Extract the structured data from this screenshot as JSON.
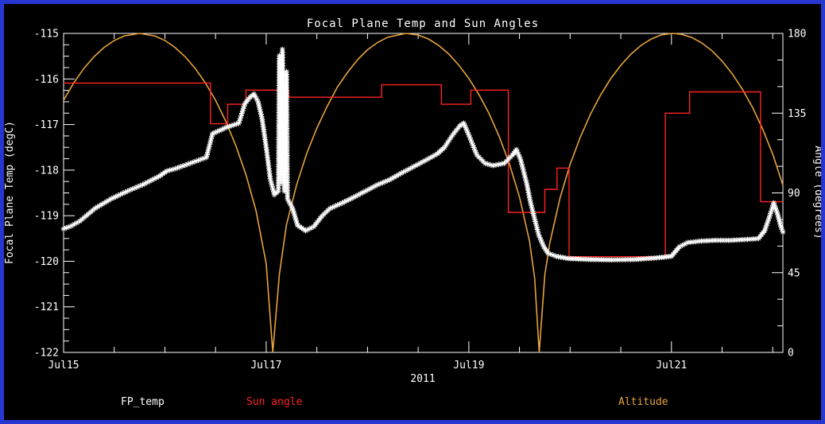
{
  "window": {
    "background": "#000000",
    "border_color": "#2636d0"
  },
  "chart_data": {
    "type": "line",
    "title": "Focal Plane Temp and Sun Angles",
    "x_axis": {
      "label": "2011",
      "range_days": [
        15.0,
        22.1
      ],
      "minor_step": 0.5,
      "ticks": [
        {
          "day": 15,
          "label": "Jul15"
        },
        {
          "day": 17,
          "label": "Jul17"
        },
        {
          "day": 19,
          "label": "Jul19"
        },
        {
          "day": 21,
          "label": "Jul21"
        }
      ]
    },
    "y_left": {
      "label": "Focal Plane Temp (degC)",
      "range": [
        -122,
        -115
      ],
      "minor_step": 0.25,
      "ticks": [
        {
          "v": -115,
          "label": "-115"
        },
        {
          "v": -116,
          "label": "-116"
        },
        {
          "v": -117,
          "label": "-117"
        },
        {
          "v": -118,
          "label": "-118"
        },
        {
          "v": -119,
          "label": "-119"
        },
        {
          "v": -120,
          "label": "-120"
        },
        {
          "v": -121,
          "label": "-121"
        },
        {
          "v": -122,
          "label": "-122"
        }
      ]
    },
    "y_right": {
      "label": "Angle (degrees)",
      "range": [
        0,
        180
      ],
      "minor_step": 15,
      "ticks": [
        {
          "v": 0,
          "label": "0"
        },
        {
          "v": 45,
          "label": "45"
        },
        {
          "v": 90,
          "label": "90"
        },
        {
          "v": 135,
          "label": "135"
        },
        {
          "v": 180,
          "label": "180"
        }
      ]
    },
    "legend": [
      {
        "label": "FP_temp",
        "color": "#ffffff"
      },
      {
        "label": "Sun angle",
        "color": "#ff2222"
      },
      {
        "label": "Altitude",
        "color": "#e8a33d"
      }
    ],
    "series": [
      {
        "name": "Altitude",
        "color": "#e8a33d",
        "style": "line",
        "axis": "right",
        "points": [
          [
            15.0,
            142.3
          ],
          [
            15.1,
            152.0
          ],
          [
            15.2,
            160.2
          ],
          [
            15.3,
            166.8
          ],
          [
            15.4,
            172.1
          ],
          [
            15.5,
            176.0
          ],
          [
            15.6,
            178.6
          ],
          [
            15.75,
            180.0
          ],
          [
            15.9,
            178.6
          ],
          [
            16.0,
            176.0
          ],
          [
            16.1,
            172.1
          ],
          [
            16.2,
            166.8
          ],
          [
            16.3,
            160.2
          ],
          [
            16.4,
            152.0
          ],
          [
            16.5,
            142.3
          ],
          [
            16.6,
            130.6
          ],
          [
            16.7,
            116.7
          ],
          [
            16.8,
            100.4
          ],
          [
            16.9,
            79.8
          ],
          [
            17.0,
            50.2
          ],
          [
            17.065,
            0.0
          ],
          [
            17.13,
            44.0
          ],
          [
            17.2,
            72.0
          ],
          [
            17.3,
            94.6
          ],
          [
            17.4,
            112.2
          ],
          [
            17.5,
            126.6
          ],
          [
            17.6,
            138.6
          ],
          [
            17.7,
            149.5
          ],
          [
            17.8,
            157.8
          ],
          [
            17.9,
            165.0
          ],
          [
            18.0,
            170.8
          ],
          [
            18.1,
            174.9
          ],
          [
            18.2,
            177.9
          ],
          [
            18.38,
            180.0
          ],
          [
            18.5,
            179.1
          ],
          [
            18.6,
            176.9
          ],
          [
            18.7,
            173.3
          ],
          [
            18.8,
            168.5
          ],
          [
            18.9,
            162.2
          ],
          [
            19.0,
            154.6
          ],
          [
            19.1,
            145.5
          ],
          [
            19.2,
            134.7
          ],
          [
            19.3,
            121.8
          ],
          [
            19.4,
            106.6
          ],
          [
            19.5,
            87.7
          ],
          [
            19.6,
            62.6
          ],
          [
            19.65,
            41.9
          ],
          [
            19.695,
            0.0
          ],
          [
            19.75,
            43.8
          ],
          [
            19.8,
            61.8
          ],
          [
            19.9,
            87.1
          ],
          [
            20.0,
            106.1
          ],
          [
            20.1,
            121.4
          ],
          [
            20.2,
            134.3
          ],
          [
            20.3,
            145.2
          ],
          [
            20.4,
            154.4
          ],
          [
            20.5,
            162.0
          ],
          [
            20.6,
            168.3
          ],
          [
            20.7,
            173.2
          ],
          [
            20.8,
            176.8
          ],
          [
            20.9,
            179.2
          ],
          [
            21.01,
            180.0
          ],
          [
            21.1,
            179.5
          ],
          [
            21.2,
            177.7
          ],
          [
            21.3,
            174.6
          ],
          [
            21.4,
            170.2
          ],
          [
            21.5,
            164.4
          ],
          [
            21.6,
            157.2
          ],
          [
            21.7,
            148.6
          ],
          [
            21.8,
            138.3
          ],
          [
            21.9,
            126.1
          ],
          [
            22.0,
            111.8
          ],
          [
            22.1,
            94.4
          ]
        ]
      },
      {
        "name": "Sun angle",
        "color": "#ff2222",
        "style": "step",
        "axis": "right",
        "segments": [
          [
            15.0,
            16.45,
            152
          ],
          [
            16.45,
            16.62,
            129
          ],
          [
            16.62,
            16.8,
            140
          ],
          [
            16.8,
            17.22,
            148
          ],
          [
            17.22,
            18.14,
            144
          ],
          [
            18.14,
            18.73,
            151
          ],
          [
            18.73,
            19.02,
            140
          ],
          [
            19.02,
            19.39,
            148
          ],
          [
            19.39,
            19.75,
            79
          ],
          [
            19.75,
            19.87,
            92
          ],
          [
            19.87,
            19.99,
            104
          ],
          [
            19.99,
            20.94,
            54
          ],
          [
            20.94,
            21.18,
            135
          ],
          [
            21.18,
            21.88,
            147
          ],
          [
            21.88,
            22.1,
            85
          ]
        ]
      },
      {
        "name": "FP_temp",
        "color": "#ffffff",
        "style": "markers",
        "axis": "left",
        "points": [
          [
            15.0,
            -119.29
          ],
          [
            15.08,
            -119.22
          ],
          [
            15.16,
            -119.12
          ],
          [
            15.31,
            -118.84
          ],
          [
            15.47,
            -118.63
          ],
          [
            15.63,
            -118.46
          ],
          [
            15.78,
            -118.32
          ],
          [
            15.94,
            -118.14
          ],
          [
            16.02,
            -118.02
          ],
          [
            16.1,
            -117.97
          ],
          [
            16.25,
            -117.85
          ],
          [
            16.41,
            -117.72
          ],
          [
            16.47,
            -117.2
          ],
          [
            16.61,
            -117.06
          ],
          [
            16.73,
            -116.97
          ],
          [
            16.79,
            -116.54
          ],
          [
            16.84,
            -116.4
          ],
          [
            16.88,
            -116.33
          ],
          [
            16.92,
            -116.5
          ],
          [
            16.96,
            -116.88
          ],
          [
            17.0,
            -117.5
          ],
          [
            17.04,
            -118.19
          ],
          [
            17.08,
            -118.54
          ],
          [
            17.12,
            -118.46
          ],
          [
            17.13,
            -115.49
          ],
          [
            17.15,
            -118.28
          ],
          [
            17.16,
            -115.35
          ],
          [
            17.18,
            -118.46
          ],
          [
            17.2,
            -115.84
          ],
          [
            17.21,
            -118.63
          ],
          [
            17.26,
            -118.84
          ],
          [
            17.31,
            -119.21
          ],
          [
            17.39,
            -119.33
          ],
          [
            17.47,
            -119.24
          ],
          [
            17.55,
            -119.01
          ],
          [
            17.63,
            -118.84
          ],
          [
            17.75,
            -118.72
          ],
          [
            17.86,
            -118.6
          ],
          [
            17.98,
            -118.46
          ],
          [
            18.1,
            -118.32
          ],
          [
            18.22,
            -118.21
          ],
          [
            18.33,
            -118.07
          ],
          [
            18.45,
            -117.93
          ],
          [
            18.57,
            -117.79
          ],
          [
            18.69,
            -117.64
          ],
          [
            18.76,
            -117.5
          ],
          [
            18.84,
            -117.23
          ],
          [
            18.91,
            -117.03
          ],
          [
            18.95,
            -116.97
          ],
          [
            19.0,
            -117.23
          ],
          [
            19.08,
            -117.67
          ],
          [
            19.16,
            -117.85
          ],
          [
            19.24,
            -117.9
          ],
          [
            19.35,
            -117.85
          ],
          [
            19.43,
            -117.67
          ],
          [
            19.47,
            -117.55
          ],
          [
            19.51,
            -117.76
          ],
          [
            19.57,
            -118.28
          ],
          [
            19.61,
            -118.72
          ],
          [
            19.65,
            -119.07
          ],
          [
            19.69,
            -119.42
          ],
          [
            19.74,
            -119.68
          ],
          [
            19.78,
            -119.82
          ],
          [
            19.86,
            -119.89
          ],
          [
            19.98,
            -119.94
          ],
          [
            20.18,
            -119.96
          ],
          [
            20.41,
            -119.97
          ],
          [
            20.65,
            -119.96
          ],
          [
            20.88,
            -119.92
          ],
          [
            21.0,
            -119.89
          ],
          [
            21.08,
            -119.68
          ],
          [
            21.16,
            -119.59
          ],
          [
            21.27,
            -119.56
          ],
          [
            21.43,
            -119.54
          ],
          [
            21.59,
            -119.54
          ],
          [
            21.75,
            -119.52
          ],
          [
            21.86,
            -119.5
          ],
          [
            21.92,
            -119.33
          ],
          [
            21.97,
            -119.01
          ],
          [
            22.01,
            -118.72
          ],
          [
            22.05,
            -118.98
          ],
          [
            22.08,
            -119.24
          ],
          [
            22.1,
            -119.36
          ]
        ]
      }
    ]
  }
}
